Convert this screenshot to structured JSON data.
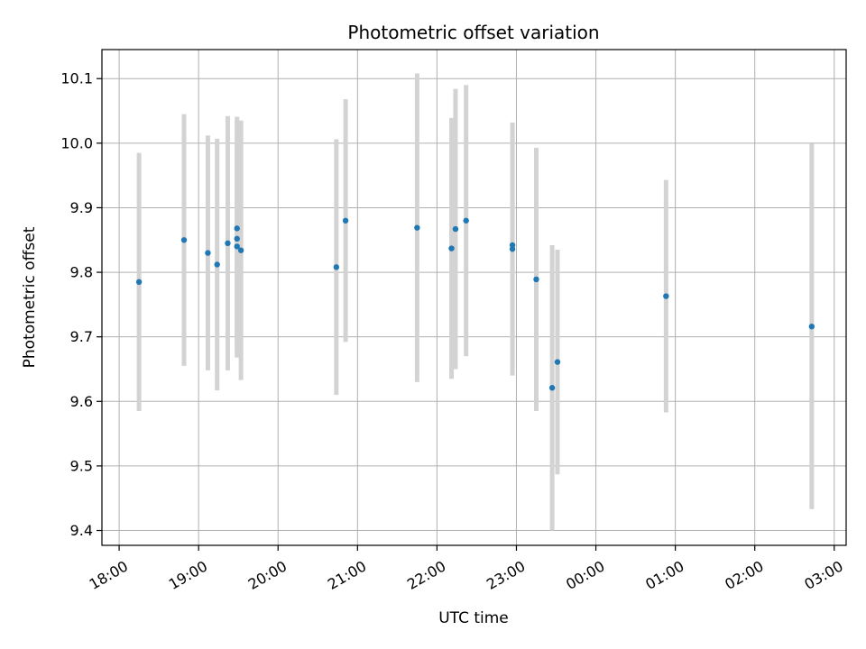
{
  "chart_data": {
    "type": "scatter",
    "title": "Photometric offset variation",
    "xlabel": "UTC time",
    "ylabel": "Photometric offset",
    "x_tick_labels": [
      "18:00",
      "19:00",
      "20:00",
      "21:00",
      "22:00",
      "23:00",
      "00:00",
      "01:00",
      "02:00",
      "03:00"
    ],
    "y_ticks": [
      9.4,
      9.5,
      9.6,
      9.7,
      9.8,
      9.9,
      10.0,
      10.1
    ],
    "y_tick_labels": [
      "9.4",
      "9.5",
      "9.6",
      "9.7",
      "9.8",
      "9.9",
      "10.0",
      "10.1"
    ],
    "xlim": [
      "17:47",
      "03:09"
    ],
    "ylim": [
      9.377,
      10.145
    ],
    "grid": true,
    "point_color": "#1f77b4",
    "errorbar_color": "#d3d3d3",
    "points": [
      {
        "time": "18:15",
        "y": 9.785,
        "low": 9.585,
        "high": 9.985
      },
      {
        "time": "18:49",
        "y": 9.85,
        "low": 9.655,
        "high": 10.045
      },
      {
        "time": "19:07",
        "y": 9.83,
        "low": 9.648,
        "high": 10.012
      },
      {
        "time": "19:14",
        "y": 9.812,
        "low": 9.617,
        "high": 10.007
      },
      {
        "time": "19:22",
        "y": 9.845,
        "low": 9.648,
        "high": 10.042
      },
      {
        "time": "19:29",
        "y": 9.868,
        "low": 9.695,
        "high": 10.041
      },
      {
        "time": "19:29",
        "y": 9.852,
        "low": 9.668,
        "high": 10.036
      },
      {
        "time": "19:29",
        "y": 9.84,
        "low": 9.678,
        "high": 10.002
      },
      {
        "time": "19:32",
        "y": 9.834,
        "low": 9.633,
        "high": 10.035
      },
      {
        "time": "20:44",
        "y": 9.808,
        "low": 9.61,
        "high": 10.006
      },
      {
        "time": "20:51",
        "y": 9.88,
        "low": 9.692,
        "high": 10.068
      },
      {
        "time": "21:45",
        "y": 9.869,
        "low": 9.63,
        "high": 10.108
      },
      {
        "time": "22:11",
        "y": 9.837,
        "low": 9.635,
        "high": 10.039
      },
      {
        "time": "22:14",
        "y": 9.867,
        "low": 9.65,
        "high": 10.084
      },
      {
        "time": "22:22",
        "y": 9.88,
        "low": 9.67,
        "high": 10.09
      },
      {
        "time": "22:57",
        "y": 9.842,
        "low": 9.655,
        "high": 10.029
      },
      {
        "time": "22:57",
        "y": 9.836,
        "low": 9.64,
        "high": 10.032
      },
      {
        "time": "23:15",
        "y": 9.789,
        "low": 9.585,
        "high": 9.993
      },
      {
        "time": "23:27",
        "y": 9.621,
        "low": 9.4,
        "high": 9.842
      },
      {
        "time": "23:31",
        "y": 9.661,
        "low": 9.487,
        "high": 9.835
      },
      {
        "time": "00:53",
        "y": 9.763,
        "low": 9.583,
        "high": 9.943
      },
      {
        "time": "02:43",
        "y": 9.716,
        "low": 9.433,
        "high": 9.999
      }
    ]
  }
}
